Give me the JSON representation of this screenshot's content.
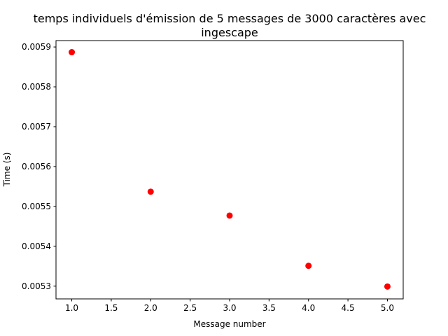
{
  "chart_data": {
    "type": "scatter",
    "title_lines": [
      "temps individuels d'émission de 5 messages de 3000 caractères avec",
      "ingescape"
    ],
    "xlabel": "Message number",
    "ylabel": "Time (s)",
    "xlim": [
      0.8,
      5.2
    ],
    "ylim": [
      0.005268,
      0.005916
    ],
    "x_ticks": [
      1.0,
      1.5,
      2.0,
      2.5,
      3.0,
      3.5,
      4.0,
      4.5,
      5.0
    ],
    "x_tick_labels": [
      "1.0",
      "1.5",
      "2.0",
      "2.5",
      "3.0",
      "3.5",
      "4.0",
      "4.5",
      "5.0"
    ],
    "y_ticks": [
      0.0053,
      0.0054,
      0.0055,
      0.0056,
      0.0057,
      0.0058,
      0.0059
    ],
    "y_tick_labels": [
      "0.0053",
      "0.0054",
      "0.0055",
      "0.0056",
      "0.0057",
      "0.0058",
      "0.0059"
    ],
    "grid": false,
    "marker_color": "#ff0000",
    "points": [
      {
        "x": 1.0,
        "y": 0.005887
      },
      {
        "x": 2.0,
        "y": 0.005537
      },
      {
        "x": 3.0,
        "y": 0.005477
      },
      {
        "x": 4.0,
        "y": 0.005351
      },
      {
        "x": 5.0,
        "y": 0.005299
      }
    ]
  }
}
